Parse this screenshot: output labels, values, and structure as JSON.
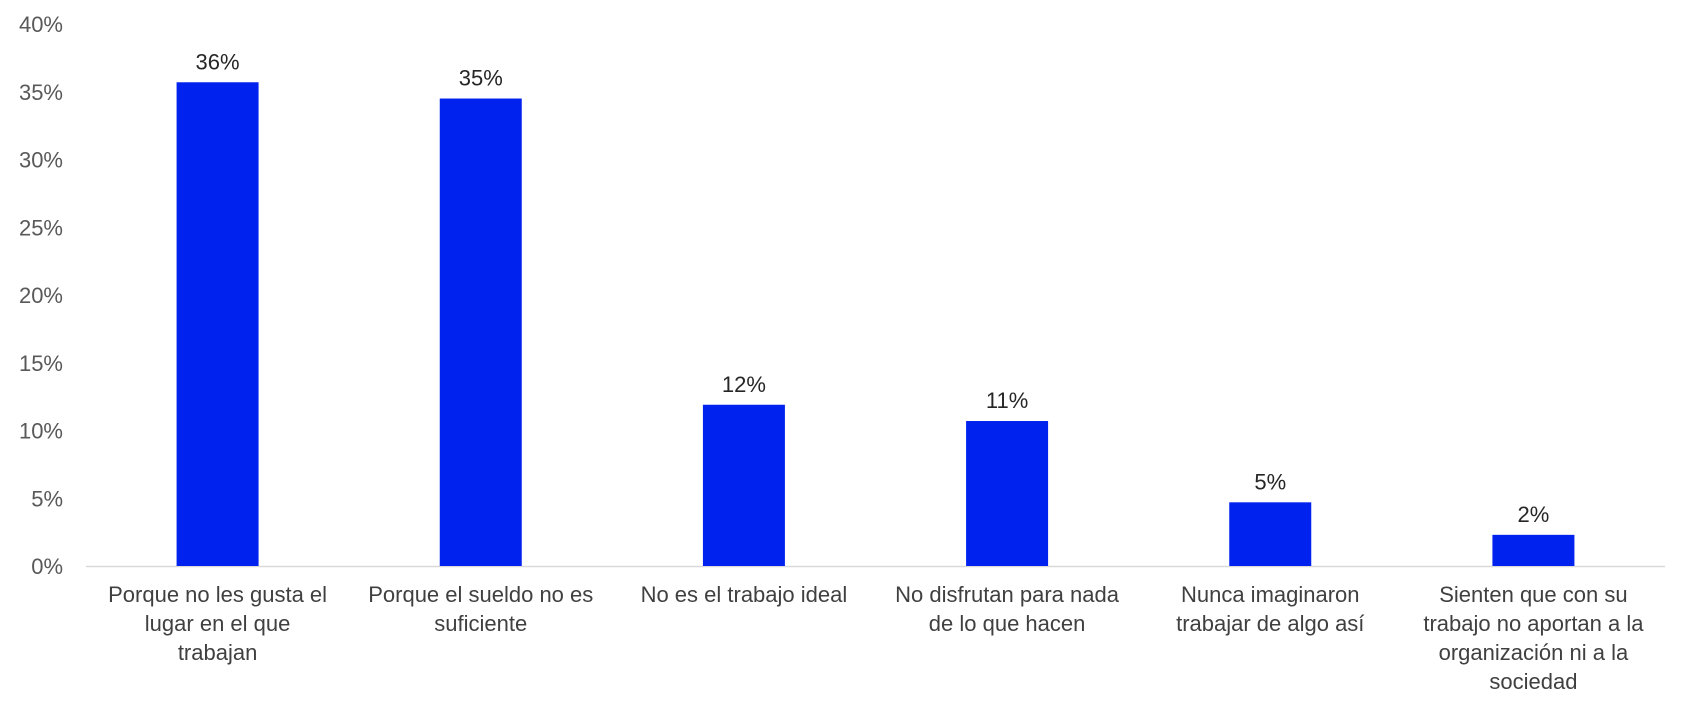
{
  "chart_data": {
    "type": "bar",
    "title": "",
    "xlabel": "",
    "ylabel": "",
    "ylim": [
      0,
      0.4
    ],
    "yticks": [
      0,
      0.05,
      0.1,
      0.15,
      0.2,
      0.25,
      0.3,
      0.35,
      0.4
    ],
    "ytick_labels": [
      "0%",
      "5%",
      "10%",
      "15%",
      "20%",
      "25%",
      "30%",
      "35%",
      "40%"
    ],
    "grid": false,
    "legend": "none",
    "bar_color": "#0022EE",
    "categories": [
      "Porque no les gusta el lugar en el que trabajan",
      "Porque el sueldo no es suficiente",
      "No es el trabajo ideal",
      "No disfrutan para nada de lo que hacen",
      "Nunca imaginaron trabajar de algo así",
      "Sienten que con su trabajo no aportan a la organización ni a la sociedad"
    ],
    "category_lines": [
      [
        "Porque no les gusta el",
        "lugar en el que",
        "trabajan"
      ],
      [
        "Porque el sueldo no es",
        "suficiente"
      ],
      [
        "No es el trabajo ideal"
      ],
      [
        "No disfrutan para nada",
        "de lo que hacen"
      ],
      [
        "Nunca imaginaron",
        "trabajar de algo así"
      ],
      [
        "Sienten que con su",
        "trabajo no aportan a la",
        "organización ni a la",
        "sociedad"
      ]
    ],
    "values": [
      0.357,
      0.345,
      0.119,
      0.107,
      0.047,
      0.023
    ],
    "data_labels": [
      "36%",
      "35%",
      "12%",
      "11%",
      "5%",
      "2%"
    ]
  }
}
